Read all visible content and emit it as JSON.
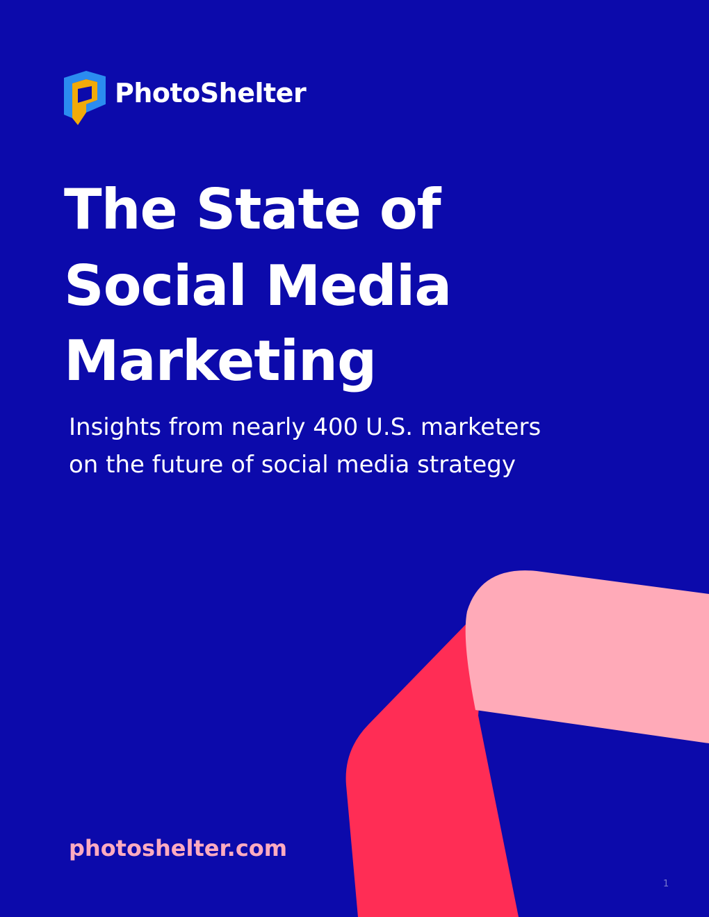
{
  "brand": "PhotoShelter",
  "title": {
    "lines": [
      "The State of",
      "Social Media",
      "Marketing"
    ]
  },
  "subtitle": {
    "lines": [
      "Insights from nearly 400 U.S. marketers",
      "on the future of social media strategy"
    ]
  },
  "url": "photoshelter.com",
  "page_number": "1"
}
